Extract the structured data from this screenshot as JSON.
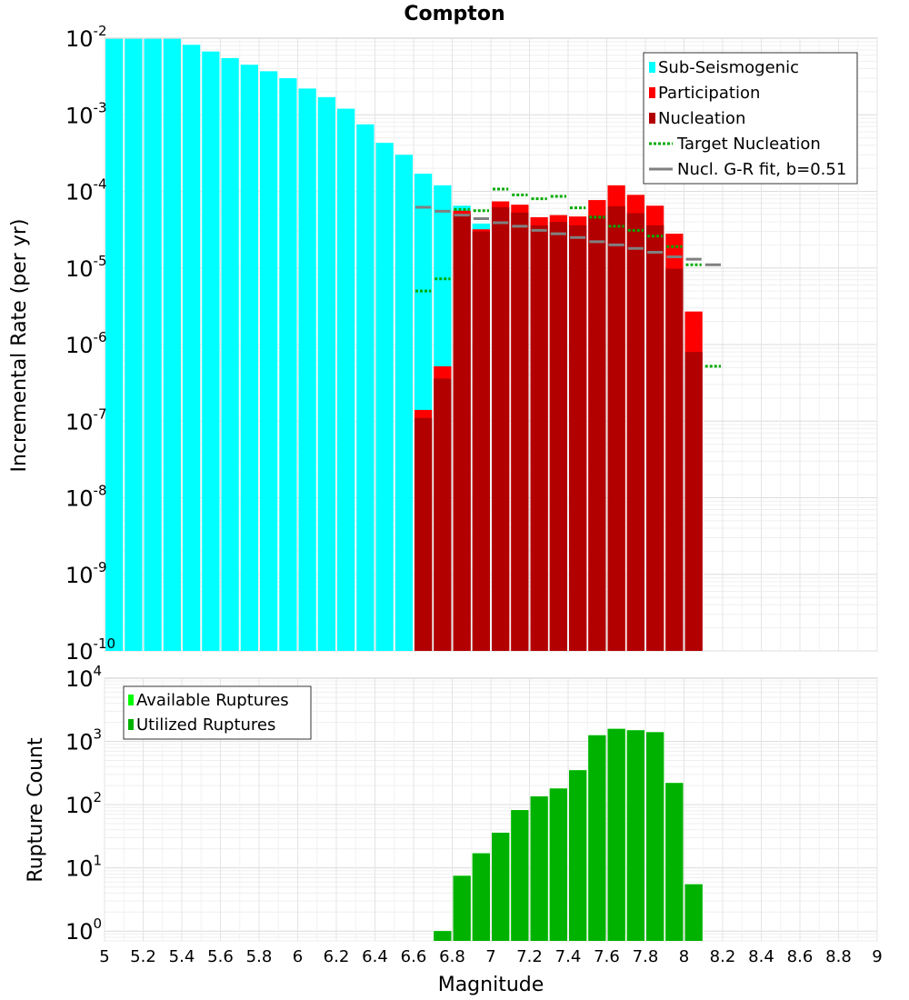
{
  "chart_data": [
    {
      "type": "bar",
      "title": "Compton",
      "xlabel": "",
      "ylabel": "Incremental Rate (per yr)",
      "yscale": "log",
      "xlim": [
        5,
        9
      ],
      "ylim": [
        1e-10,
        0.01
      ],
      "yticks": [
        {
          "base": "10",
          "exp": "-10"
        },
        {
          "base": "10",
          "exp": "-9"
        },
        {
          "base": "10",
          "exp": "-8"
        },
        {
          "base": "10",
          "exp": "-7"
        },
        {
          "base": "10",
          "exp": "-6"
        },
        {
          "base": "10",
          "exp": "-5"
        },
        {
          "base": "10",
          "exp": "-4"
        },
        {
          "base": "10",
          "exp": "-3"
        },
        {
          "base": "10",
          "exp": "-2"
        }
      ],
      "grid": true,
      "legend_position": "top-right",
      "series": [
        {
          "name": "Sub-Seismogenic",
          "color": "#00ffff",
          "kind": "bar",
          "x": [
            5.05,
            5.15,
            5.25,
            5.35,
            5.45,
            5.55,
            5.65,
            5.75,
            5.85,
            5.95,
            6.05,
            6.15,
            6.25,
            6.35,
            6.45,
            6.55,
            6.65,
            6.75,
            6.85,
            6.95
          ],
          "values": [
            0.0098,
            0.0098,
            0.0098,
            0.0098,
            0.0082,
            0.0067,
            0.0055,
            0.0045,
            0.0037,
            0.003,
            0.0022,
            0.0017,
            0.0012,
            0.00075,
            0.00043,
            0.0003,
            0.00017,
            0.00012,
            6.5e-05,
            3.8e-05
          ]
        },
        {
          "name": "Participation",
          "color": "#ff0000",
          "kind": "bar",
          "x": [
            6.65,
            6.75,
            6.85,
            6.95,
            7.05,
            7.15,
            7.25,
            7.35,
            7.45,
            7.55,
            7.65,
            7.75,
            7.85,
            7.95,
            8.05
          ],
          "values": [
            1.4e-07,
            5.2e-07,
            5.6e-05,
            3.2e-05,
            7.4e-05,
            6.7e-05,
            4.6e-05,
            4.9e-05,
            4.7e-05,
            7.7e-05,
            0.00012,
            9e-05,
            6.5e-05,
            2.8e-05,
            2.7e-06
          ]
        },
        {
          "name": "Nucleation",
          "color": "#b20000",
          "kind": "bar",
          "x": [
            6.65,
            6.75,
            6.85,
            6.95,
            7.05,
            7.15,
            7.25,
            7.35,
            7.45,
            7.55,
            7.65,
            7.75,
            7.85,
            7.95,
            8.05
          ],
          "values": [
            1.1e-07,
            3.6e-07,
            5e-05,
            3e-05,
            6.2e-05,
            5.3e-05,
            3.6e-05,
            4e-05,
            3.6e-05,
            4.8e-05,
            6.4e-05,
            5.2e-05,
            3.6e-05,
            9.8e-06,
            8e-07
          ]
        },
        {
          "name": "Target Nucleation",
          "color": "#00aa00",
          "kind": "dotted-step",
          "x": [
            6.65,
            6.75,
            6.85,
            6.95,
            7.05,
            7.15,
            7.25,
            7.35,
            7.45,
            7.55,
            7.65,
            7.75,
            7.85,
            7.95,
            8.05,
            8.15
          ],
          "values": [
            5e-06,
            7.2e-06,
            5.8e-05,
            5.6e-05,
            0.000107,
            9e-05,
            8e-05,
            8.6e-05,
            6.1e-05,
            4.6e-05,
            3.5e-05,
            3.1e-05,
            2.6e-05,
            1.9e-05,
            1.1e-05,
            5.2e-07
          ]
        },
        {
          "name": "Nucl. G-R fit, b=0.51",
          "color": "#808080",
          "kind": "step",
          "x": [
            6.65,
            6.75,
            6.85,
            6.95,
            7.05,
            7.15,
            7.25,
            7.35,
            7.45,
            7.55,
            7.65,
            7.75,
            7.85,
            7.95,
            8.05,
            8.15
          ],
          "values": [
            6.2e-05,
            5.5e-05,
            4.9e-05,
            4.4e-05,
            3.9e-05,
            3.5e-05,
            3.1e-05,
            2.8e-05,
            2.5e-05,
            2.2e-05,
            2e-05,
            1.8e-05,
            1.6e-05,
            1.4e-05,
            1.3e-05,
            1.1e-05
          ]
        }
      ]
    },
    {
      "type": "bar",
      "title": "",
      "xlabel": "Magnitude",
      "ylabel": "Rupture Count",
      "yscale": "log",
      "xlim": [
        5,
        9
      ],
      "ylim": [
        0.7,
        10000
      ],
      "xticks": [
        "5",
        "5.2",
        "5.4",
        "5.6",
        "5.8",
        "6",
        "6.2",
        "6.4",
        "6.6",
        "6.8",
        "7",
        "7.2",
        "7.4",
        "7.6",
        "7.8",
        "8",
        "8.2",
        "8.4",
        "8.6",
        "8.8",
        "9"
      ],
      "yticks": [
        {
          "base": "10",
          "exp": "0",
          "value": 1
        },
        {
          "base": "10",
          "exp": "1",
          "value": 10
        },
        {
          "base": "10",
          "exp": "2",
          "value": 100
        },
        {
          "base": "10",
          "exp": "3",
          "value": 1000
        },
        {
          "base": "10",
          "exp": "4",
          "value": 10000
        }
      ],
      "grid": true,
      "legend_position": "top-left",
      "series": [
        {
          "name": "Available Ruptures",
          "color": "#00ff00",
          "kind": "bar",
          "x": [
            6.75,
            6.85,
            6.95,
            7.05,
            7.15,
            7.25,
            7.35,
            7.45,
            7.55,
            7.65,
            7.75,
            7.85,
            7.95,
            8.05
          ],
          "values": [
            1,
            7.5,
            17,
            36,
            82,
            135,
            180,
            350,
            1250,
            1580,
            1500,
            1400,
            220,
            5.5
          ]
        },
        {
          "name": "Utilized Ruptures",
          "color": "#00b200",
          "kind": "bar",
          "x": [
            6.75,
            6.85,
            6.95,
            7.05,
            7.15,
            7.25,
            7.35,
            7.45,
            7.55,
            7.65,
            7.75,
            7.85,
            7.95,
            8.05
          ],
          "values": [
            1,
            7.5,
            17,
            36,
            82,
            135,
            180,
            350,
            1250,
            1580,
            1500,
            1400,
            220,
            5.5
          ]
        }
      ]
    }
  ]
}
